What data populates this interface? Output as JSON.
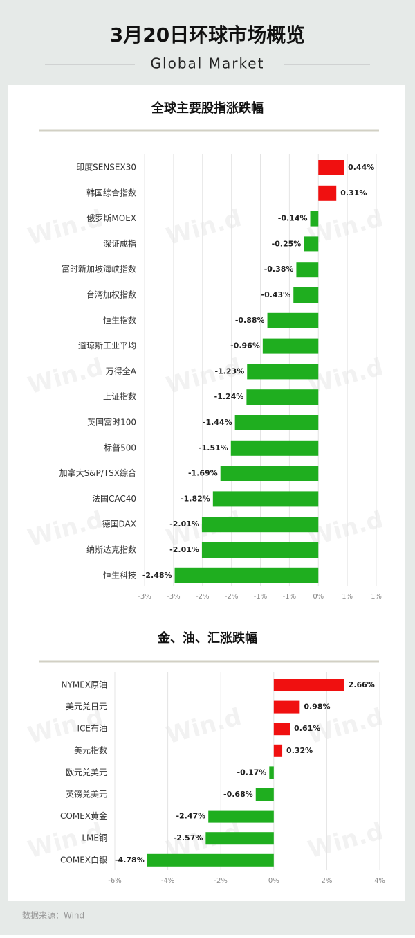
{
  "header": {
    "title": "3月20日环球市场概览",
    "subtitle": "Global Market"
  },
  "watermark": "Win.d",
  "chart_data": [
    {
      "type": "bar",
      "orientation": "horizontal",
      "title": "全球主要股指涨跌幅",
      "categories": [
        "印度SENSEX30",
        "韩国综合指数",
        "俄罗斯MOEX",
        "深证成指",
        "富时新加坡海峡指数",
        "台湾加权指数",
        "恒生指数",
        "道琼斯工业平均",
        "万得全A",
        "上证指数",
        "英国富时100",
        "标普500",
        "加拿大S&P/TSX综合",
        "法国CAC40",
        "德国DAX",
        "纳斯达克指数",
        "恒生科技"
      ],
      "values": [
        0.44,
        0.31,
        -0.14,
        -0.25,
        -0.38,
        -0.43,
        -0.88,
        -0.96,
        -1.23,
        -1.24,
        -1.44,
        -1.51,
        -1.69,
        -1.82,
        -2.01,
        -2.01,
        -2.48
      ],
      "value_labels": [
        "0.44%",
        "0.31%",
        "-0.14%",
        "-0.25%",
        "-0.38%",
        "-0.43%",
        "-0.88%",
        "-0.96%",
        "-1.23%",
        "-1.24%",
        "-1.44%",
        "-1.51%",
        "-1.69%",
        "-1.82%",
        "-2.01%",
        "-2.01%",
        "-2.48%"
      ],
      "xlim": [
        -3,
        1
      ],
      "xticks": [
        {
          "value": -3,
          "label": "-3%"
        },
        {
          "value": -2.5,
          "label": "-3%"
        },
        {
          "value": -2,
          "label": "-2%"
        },
        {
          "value": -1.5,
          "label": "-2%"
        },
        {
          "value": -1,
          "label": "-1%"
        },
        {
          "value": -0.5,
          "label": "-1%"
        },
        {
          "value": 0,
          "label": "0%"
        },
        {
          "value": 0.5,
          "label": "1%"
        },
        {
          "value": 1,
          "label": "1%"
        }
      ],
      "grid": true,
      "positive_color": "#f01010",
      "negative_color": "#1fae1f"
    },
    {
      "type": "bar",
      "orientation": "horizontal",
      "title": "金、油、汇涨跌幅",
      "categories": [
        "NYMEX原油",
        "美元兑日元",
        "ICE布油",
        "美元指数",
        "欧元兑美元",
        "英镑兑美元",
        "COMEX黄金",
        "LME铜",
        "COMEX白银"
      ],
      "values": [
        2.66,
        0.98,
        0.61,
        0.32,
        -0.17,
        -0.68,
        -2.47,
        -2.57,
        -4.78
      ],
      "value_labels": [
        "2.66%",
        "0.98%",
        "0.61%",
        "0.32%",
        "-0.17%",
        "-0.68%",
        "-2.47%",
        "-2.57%",
        "-4.78%"
      ],
      "xlim": [
        -6,
        4
      ],
      "xticks": [
        {
          "value": -6,
          "label": "-6%"
        },
        {
          "value": -4,
          "label": "-4%"
        },
        {
          "value": -2,
          "label": "-2%"
        },
        {
          "value": 0,
          "label": "0%"
        },
        {
          "value": 2,
          "label": "2%"
        },
        {
          "value": 4,
          "label": "4%"
        }
      ],
      "grid": true,
      "positive_color": "#f01010",
      "negative_color": "#1fae1f"
    }
  ],
  "footer": {
    "source": "数据来源：Wind"
  }
}
